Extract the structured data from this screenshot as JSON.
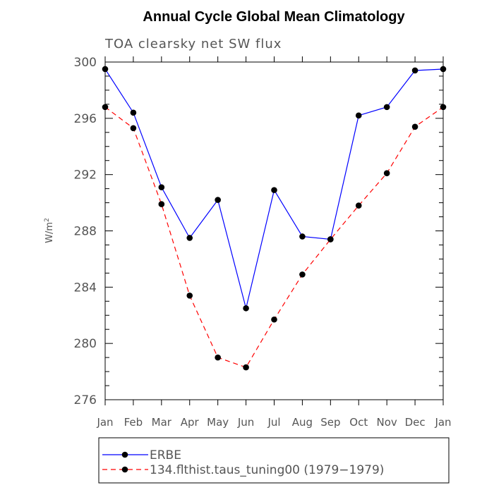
{
  "chart_data": {
    "type": "line",
    "title": "Annual Cycle Global Mean Climatology",
    "subtitle": "TOA clearsky net SW flux",
    "ylabel_base": "W/m",
    "ylabel_sup": "2",
    "xlabel": "",
    "ylim": [
      276,
      300
    ],
    "yticks": [
      276,
      280,
      284,
      288,
      292,
      296,
      300
    ],
    "categories": [
      "Jan",
      "Feb",
      "Mar",
      "Apr",
      "May",
      "Jun",
      "Jul",
      "Aug",
      "Sep",
      "Oct",
      "Nov",
      "Dec",
      "Jan"
    ],
    "series": [
      {
        "name": "ERBE",
        "color": "#0000ff",
        "dash": "solid",
        "values": [
          299.5,
          296.4,
          291.1,
          287.5,
          290.2,
          282.5,
          290.9,
          287.6,
          287.4,
          296.2,
          296.8,
          299.4,
          299.5
        ]
      },
      {
        "name": "134.flthist.taus_tuning00 (1979−1979)",
        "color": "#ff0000",
        "dash": "dashed",
        "values": [
          296.8,
          295.3,
          289.9,
          283.4,
          279.0,
          278.3,
          281.7,
          284.9,
          287.4,
          289.8,
          292.1,
          295.4,
          296.8
        ]
      }
    ]
  }
}
